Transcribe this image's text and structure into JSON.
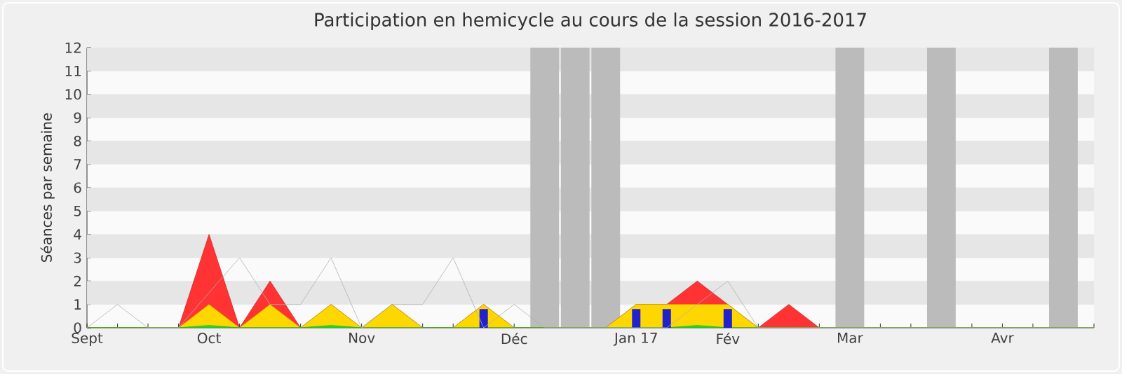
{
  "chart_data": {
    "type": "area",
    "title": "Participation en hemicycle au cours de la session 2016-2017",
    "ylabel": "Séances par semaine",
    "x": [
      "2016-09-07",
      "2016-09-14",
      "2016-09-21",
      "2016-09-28",
      "2016-10-05",
      "2016-10-12",
      "2016-10-19",
      "2016-10-26",
      "2016-11-02",
      "2016-11-09",
      "2016-11-16",
      "2016-11-23",
      "2016-11-30",
      "2016-12-07",
      "2016-12-14",
      "2016-12-21",
      "2016-12-28",
      "2017-01-04",
      "2017-01-11",
      "2017-01-18",
      "2017-01-25",
      "2017-02-01",
      "2017-02-08",
      "2017-02-15",
      "2017-02-22",
      "2017-03-01",
      "2017-03-08",
      "2017-03-15",
      "2017-03-22",
      "2017-03-29",
      "2017-04-05",
      "2017-04-12",
      "2017-04-19",
      "2017-04-26"
    ],
    "series": [
      {
        "type": "bar",
        "color": "#bbbbbb",
        "values": [
          null,
          null,
          null,
          null,
          null,
          null,
          null,
          null,
          null,
          null,
          null,
          null,
          null,
          null,
          null,
          12,
          12,
          12,
          null,
          null,
          null,
          null,
          null,
          null,
          null,
          12,
          null,
          null,
          12,
          null,
          null,
          null,
          12,
          null
        ]
      },
      {
        "color": "#ff3333",
        "values": [
          0,
          0,
          0,
          0,
          4,
          0,
          2,
          0,
          1,
          0,
          1,
          0,
          0,
          1,
          0,
          0,
          0,
          0,
          1,
          1,
          2,
          1,
          0,
          1,
          0,
          0,
          0,
          0,
          0,
          0,
          0,
          0,
          0,
          0
        ]
      },
      {
        "color": "#ffd700",
        "values": [
          0,
          0,
          0,
          0,
          1,
          0,
          1,
          0,
          1,
          0,
          1,
          0,
          0,
          1,
          0,
          0,
          0,
          0,
          1,
          1,
          1,
          1,
          0,
          0,
          0,
          0,
          0,
          0,
          0,
          0,
          0,
          0,
          0,
          0
        ]
      },
      {
        "color": "#22dd22",
        "values": [
          0,
          0,
          0,
          0,
          0.1,
          0,
          0,
          0,
          0.1,
          0,
          0,
          0,
          0,
          0,
          0,
          0,
          0,
          0,
          0,
          0,
          0.1,
          0,
          0,
          0,
          0,
          0,
          0,
          0,
          0,
          0,
          0,
          0,
          0,
          0
        ]
      },
      {
        "type": "bar",
        "color": "#2222cc",
        "values": [
          0,
          0,
          0,
          0,
          0,
          0,
          0,
          0,
          0,
          0,
          0,
          0,
          0,
          0.8,
          0,
          0,
          0,
          0,
          0.8,
          0.8,
          0,
          0.8,
          0,
          0,
          0,
          0,
          0,
          0,
          0,
          0,
          0,
          0,
          0,
          0
        ]
      },
      {
        "type": "line",
        "color": "#b0b0b0",
        "values": [
          0,
          1,
          0,
          0,
          1.5,
          3,
          1,
          1,
          3,
          0,
          1,
          1,
          3,
          0,
          1,
          0,
          0,
          0,
          0,
          0,
          1,
          2,
          0,
          0,
          0,
          0,
          0,
          0,
          0,
          0,
          0,
          0,
          0,
          0
        ]
      }
    ],
    "xlim": [
      "2016-09-07",
      "2017-04-26"
    ],
    "xticks": [
      {
        "value": "2016-09-07",
        "label": "Sept"
      },
      {
        "value": "2016-09-14",
        "label": null
      },
      {
        "value": "2016-09-21",
        "label": null
      },
      {
        "value": "2016-09-28",
        "label": null
      },
      {
        "value": "2016-10-05",
        "label": "Oct"
      },
      {
        "value": "2016-10-12",
        "label": null
      },
      {
        "value": "2016-10-19",
        "label": null
      },
      {
        "value": "2016-10-26",
        "label": null
      },
      {
        "value": "2016-11-02",
        "label": null
      },
      {
        "value": "2016-11-09",
        "label": "Nov"
      },
      {
        "value": "2016-11-16",
        "label": null
      },
      {
        "value": "2016-11-23",
        "label": null
      },
      {
        "value": "2016-11-30",
        "label": null
      },
      {
        "value": "2016-12-07",
        "label": null
      },
      {
        "value": "2016-12-14",
        "label": "Déc"
      },
      {
        "value": "2016-12-21",
        "label": null
      },
      {
        "value": "2016-12-28",
        "label": null
      },
      {
        "value": "2017-01-04",
        "label": null
      },
      {
        "value": "2017-01-11",
        "label": "Jan 17"
      },
      {
        "value": "2017-01-18",
        "label": null
      },
      {
        "value": "2017-01-25",
        "label": null
      },
      {
        "value": "2017-02-01",
        "label": "Fév"
      },
      {
        "value": "2017-02-08",
        "label": null
      },
      {
        "value": "2017-02-15",
        "label": null
      },
      {
        "value": "2017-02-22",
        "label": null
      },
      {
        "value": "2017-03-01",
        "label": "Mar"
      },
      {
        "value": "2017-03-08",
        "label": null
      },
      {
        "value": "2017-03-15",
        "label": null
      },
      {
        "value": "2017-03-22",
        "label": null
      },
      {
        "value": "2017-03-29",
        "label": null
      },
      {
        "value": "2017-04-05",
        "label": "Avr"
      },
      {
        "value": "2017-04-12",
        "label": null
      },
      {
        "value": "2017-04-19",
        "label": null
      },
      {
        "value": "2017-04-26",
        "label": null
      }
    ],
    "ylim": [
      0,
      12
    ],
    "yticks": [
      0,
      1,
      2,
      3,
      4,
      5,
      6,
      7,
      8,
      9,
      10,
      11,
      12
    ],
    "grid": "y"
  }
}
